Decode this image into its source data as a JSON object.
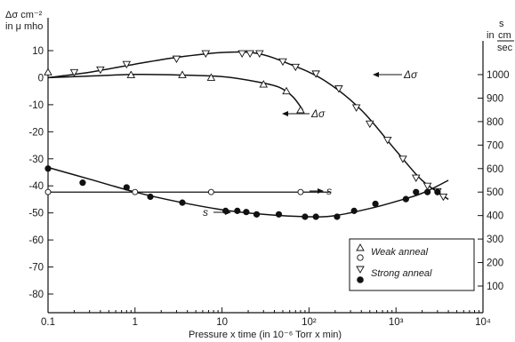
{
  "chart_data": {
    "type": "scatter",
    "xlabel": "Pressure x time (in 10⁻⁶ Torr x min)",
    "x_scale": "log",
    "xlim": [
      0.1,
      10000
    ],
    "x_ticks": [
      {
        "value": 0.1,
        "label": "0.1"
      },
      {
        "value": 1,
        "label": "1"
      },
      {
        "value": 10,
        "label": "10"
      },
      {
        "value": 100,
        "label": "10²"
      },
      {
        "value": 1000,
        "label": "10³"
      },
      {
        "value": 10000,
        "label": "10⁴"
      }
    ],
    "y_left": {
      "label_line1": "Δσ cm⁻²",
      "label_line2": "in μ mho",
      "lim": [
        -90,
        15
      ],
      "ticks": [
        10,
        0,
        -10,
        -20,
        -30,
        -40,
        -50,
        -60,
        -70,
        -80
      ]
    },
    "y_right": {
      "label_s": "s",
      "label_in": "in",
      "label_cm": "cm",
      "label_sec": "sec",
      "lim": [
        0,
        1050
      ],
      "ticks": [
        1000,
        900,
        800,
        700,
        600,
        500,
        400,
        300,
        200,
        100
      ]
    },
    "grid": false,
    "legend": {
      "placement": "bottom-right",
      "entries": [
        {
          "markers": [
            "triangle-up-open",
            "circle-open"
          ],
          "label": "Weak anneal"
        },
        {
          "markers": [
            "triangle-down-open",
            "circle-filled"
          ],
          "label": "Strong anneal"
        }
      ]
    },
    "annotations": [
      {
        "text": "Δσ",
        "target": "weak-delta-sigma"
      },
      {
        "text": "Δσ",
        "target": "strong-delta-sigma"
      },
      {
        "text": "s",
        "target": "weak-s"
      },
      {
        "text": "s",
        "target": "strong-s"
      }
    ],
    "series": [
      {
        "id": "weak-delta-sigma",
        "axis": "left",
        "marker": "triangle-up-open",
        "points": [
          [
            0.1,
            2
          ],
          [
            0.9,
            1
          ],
          [
            3.5,
            1
          ],
          [
            7.5,
            0
          ],
          [
            30,
            -2.5
          ],
          [
            55,
            -5
          ],
          [
            80,
            -12
          ]
        ],
        "curve": [
          [
            0.1,
            0
          ],
          [
            0.3,
            0.6
          ],
          [
            1,
            1.2
          ],
          [
            3,
            1.0
          ],
          [
            10,
            0.4
          ],
          [
            25,
            -1.5
          ],
          [
            45,
            -3.5
          ],
          [
            65,
            -7
          ],
          [
            85,
            -12
          ]
        ]
      },
      {
        "id": "strong-delta-sigma",
        "axis": "left",
        "marker": "triangle-down-open",
        "points": [
          [
            0.2,
            2
          ],
          [
            0.4,
            3
          ],
          [
            0.8,
            5
          ],
          [
            3,
            7
          ],
          [
            6.5,
            9
          ],
          [
            17,
            9
          ],
          [
            21,
            9
          ],
          [
            27,
            9
          ],
          [
            50,
            6
          ],
          [
            70,
            4
          ],
          [
            120,
            1.5
          ],
          [
            220,
            -4
          ],
          [
            350,
            -11
          ],
          [
            500,
            -17
          ],
          [
            800,
            -23
          ],
          [
            1200,
            -30
          ],
          [
            1700,
            -37
          ],
          [
            2300,
            -40
          ],
          [
            3000,
            -42
          ],
          [
            3500,
            -44
          ]
        ],
        "curve": [
          [
            0.1,
            0
          ],
          [
            0.3,
            2
          ],
          [
            1,
            5
          ],
          [
            3,
            7.5
          ],
          [
            10,
            9.3
          ],
          [
            25,
            9
          ],
          [
            60,
            5
          ],
          [
            150,
            -1
          ],
          [
            400,
            -12
          ],
          [
            1000,
            -27
          ],
          [
            2000,
            -38
          ],
          [
            4000,
            -45
          ]
        ]
      },
      {
        "id": "weak-s",
        "axis": "right",
        "marker": "circle-open",
        "points": [
          [
            0.1,
            500
          ],
          [
            1,
            500
          ],
          [
            7.5,
            500
          ],
          [
            80,
            500
          ]
        ],
        "curve": [
          [
            0.1,
            500
          ],
          [
            180,
            500
          ]
        ]
      },
      {
        "id": "strong-s",
        "axis": "right",
        "marker": "circle-filled",
        "points": [
          [
            0.1,
            600
          ],
          [
            0.25,
            540
          ],
          [
            0.8,
            520
          ],
          [
            1.5,
            480
          ],
          [
            3.5,
            455
          ],
          [
            11,
            420
          ],
          [
            15,
            420
          ],
          [
            19,
            415
          ],
          [
            25,
            405
          ],
          [
            45,
            405
          ],
          [
            90,
            395
          ],
          [
            120,
            395
          ],
          [
            210,
            395
          ],
          [
            330,
            420
          ],
          [
            580,
            450
          ],
          [
            1300,
            470
          ],
          [
            1700,
            500
          ],
          [
            2300,
            500
          ],
          [
            3000,
            500
          ]
        ],
        "curve": [
          [
            0.1,
            605
          ],
          [
            0.3,
            555
          ],
          [
            1,
            500
          ],
          [
            3,
            460
          ],
          [
            10,
            425
          ],
          [
            30,
            405
          ],
          [
            100,
            395
          ],
          [
            200,
            400
          ],
          [
            500,
            430
          ],
          [
            1000,
            460
          ],
          [
            2000,
            495
          ],
          [
            4000,
            550
          ]
        ]
      }
    ]
  }
}
